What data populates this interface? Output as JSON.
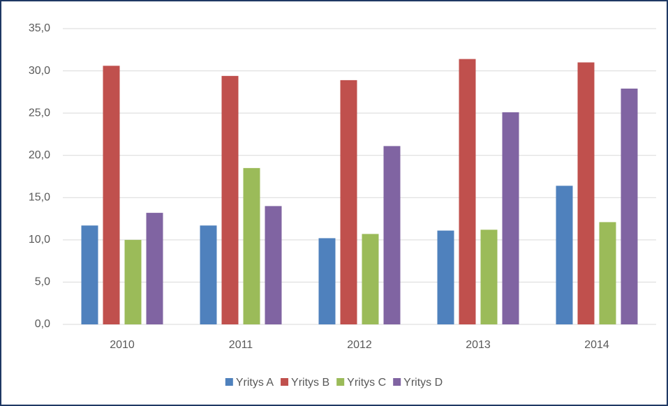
{
  "chart_data": {
    "type": "bar",
    "categories": [
      "2010",
      "2011",
      "2012",
      "2013",
      "2014"
    ],
    "series": [
      {
        "name": "Yritys A",
        "color": "#4f81bd",
        "values": [
          11.7,
          11.7,
          10.2,
          11.1,
          16.4
        ]
      },
      {
        "name": "Yritys B",
        "color": "#c0504d",
        "values": [
          30.6,
          29.4,
          28.9,
          31.4,
          31.0
        ]
      },
      {
        "name": "Yritys C",
        "color": "#9bbb59",
        "values": [
          10.0,
          18.5,
          10.7,
          11.2,
          12.1
        ]
      },
      {
        "name": "Yritys D",
        "color": "#8064a2",
        "values": [
          13.2,
          14.0,
          21.1,
          25.1,
          27.9
        ]
      }
    ],
    "ylim": [
      0,
      35
    ],
    "yticks": [
      {
        "value": 0,
        "label": "0,0"
      },
      {
        "value": 5,
        "label": "5,0"
      },
      {
        "value": 10,
        "label": "10,0"
      },
      {
        "value": 15,
        "label": "15,0"
      },
      {
        "value": 20,
        "label": "20,0"
      },
      {
        "value": 25,
        "label": "25,0"
      },
      {
        "value": 30,
        "label": "30,0"
      },
      {
        "value": 35,
        "label": "35,0"
      }
    ],
    "grid": true,
    "legend": "bottom"
  }
}
